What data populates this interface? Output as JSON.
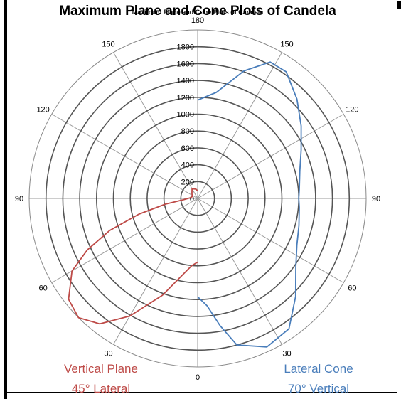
{
  "chart_data": {
    "type": "line",
    "projection": "polar",
    "title": "Maximum Plane and Cone Plots of Candela",
    "title_overlay": "Maximum Plane and Cone Plots of Candela",
    "radial_ticks": [
      0,
      200,
      400,
      600,
      800,
      1000,
      1200,
      1400,
      1600,
      1800
    ],
    "rlim": [
      0,
      1800
    ],
    "angle_ticks": [
      {
        "label": "180",
        "position": "top"
      },
      {
        "label": "150",
        "position": "upper-right"
      },
      {
        "label": "120",
        "position": "right-upper"
      },
      {
        "label": "90",
        "position": "right"
      },
      {
        "label": "60",
        "position": "right-lower"
      },
      {
        "label": "30",
        "position": "lower-right"
      },
      {
        "label": "0",
        "position": "bottom"
      },
      {
        "label": "30",
        "position": "lower-left"
      },
      {
        "label": "60",
        "position": "left-lower"
      },
      {
        "label": "90",
        "position": "left"
      },
      {
        "label": "120",
        "position": "left-upper"
      },
      {
        "label": "150",
        "position": "upper-left"
      }
    ],
    "angle_convention": "0 at bottom, 180 at top, labels mirrored on each side",
    "grid": true,
    "series": [
      {
        "name": "Lateral Cone 70° Vertical",
        "color": "#4a7ebb",
        "side": "right",
        "points": [
          {
            "angle": 0,
            "r": 1050
          },
          {
            "angle": 5,
            "r": 1150
          },
          {
            "angle": 10,
            "r": 1380
          },
          {
            "angle": 15,
            "r": 1620
          },
          {
            "angle": 25,
            "r": 1750
          },
          {
            "angle": 35,
            "r": 1700
          },
          {
            "angle": 45,
            "r": 1480
          },
          {
            "angle": 55,
            "r": 1280
          },
          {
            "angle": 65,
            "r": 1170
          },
          {
            "angle": 75,
            "r": 1120
          },
          {
            "angle": 85,
            "r": 1090
          },
          {
            "angle": 90,
            "r": 1080
          },
          {
            "angle": 95,
            "r": 1090
          },
          {
            "angle": 105,
            "r": 1130
          },
          {
            "angle": 115,
            "r": 1220
          },
          {
            "angle": 125,
            "r": 1350
          },
          {
            "angle": 135,
            "r": 1500
          },
          {
            "angle": 145,
            "r": 1650
          },
          {
            "angle": 152,
            "r": 1650
          },
          {
            "angle": 160,
            "r": 1450
          },
          {
            "angle": 170,
            "r": 1150
          },
          {
            "angle": 180,
            "r": 1050
          }
        ]
      },
      {
        "name": "Vertical Plane 45° Lateral",
        "color": "#be4b48",
        "side": "left",
        "points": [
          {
            "angle": 0,
            "r": 680
          },
          {
            "angle": 5,
            "r": 720
          },
          {
            "angle": 12,
            "r": 850
          },
          {
            "angle": 20,
            "r": 1100
          },
          {
            "angle": 30,
            "r": 1450
          },
          {
            "angle": 38,
            "r": 1700
          },
          {
            "angle": 45,
            "r": 1800
          },
          {
            "angle": 52,
            "r": 1750
          },
          {
            "angle": 60,
            "r": 1550
          },
          {
            "angle": 65,
            "r": 1300
          },
          {
            "angle": 70,
            "r": 1000
          },
          {
            "angle": 75,
            "r": 650
          },
          {
            "angle": 80,
            "r": 350
          },
          {
            "angle": 85,
            "r": 150
          },
          {
            "angle": 95,
            "r": 80
          },
          {
            "angle": 110,
            "r": 60
          },
          {
            "angle": 130,
            "r": 80
          },
          {
            "angle": 150,
            "r": 120
          },
          {
            "angle": 170,
            "r": 100
          },
          {
            "angle": 180,
            "r": 80
          }
        ]
      }
    ],
    "legend": {
      "placement": "bottom",
      "items": [
        {
          "line1": "Vertical Plane",
          "line2": "45° Lateral",
          "color": "#be4b48",
          "position": "bottom-left"
        },
        {
          "line1": "Lateral Cone",
          "line2": "70° Vertical",
          "color": "#4a7ebb",
          "position": "bottom-right"
        }
      ]
    }
  }
}
